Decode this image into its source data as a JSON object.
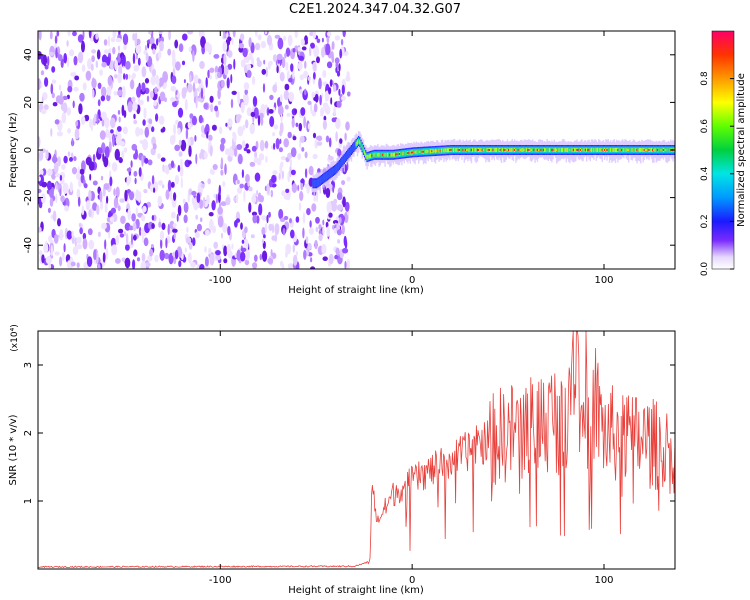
{
  "title": "C2E1.2024.347.04.32.G07",
  "chart_data": [
    {
      "type": "heatmap",
      "title": "C2E1.2024.347.04.32.G07",
      "xlabel": "Height of straight line (km)",
      "ylabel": "Frequency (Hz)",
      "xlim": [
        -195,
        137
      ],
      "ylim": [
        -50,
        50
      ],
      "xticks": [
        -100,
        0,
        100
      ],
      "yticks": [
        -40,
        -20,
        0,
        20,
        40
      ],
      "colorbar": {
        "label": "Normalized spectral amplitude",
        "range": [
          0,
          1
        ],
        "ticks": [
          0.0,
          0.2,
          0.4,
          0.6,
          0.8
        ]
      },
      "noise_region_x": [
        -195,
        -35
      ],
      "signal_track": {
        "x": [
          -50,
          -40,
          -32,
          -28,
          -24,
          -20,
          -10,
          0,
          20,
          40,
          60,
          80,
          100,
          120,
          137
        ],
        "y": [
          -14,
          -8,
          0,
          4,
          -3,
          -2,
          -2,
          -1,
          0,
          0,
          0,
          0,
          0,
          0,
          0
        ]
      }
    },
    {
      "type": "line",
      "xlabel": "Height of straight line (km)",
      "ylabel": "SNR (10 * v/v)",
      "yexponent": "(x10⁴)",
      "xlim": [
        -195,
        137
      ],
      "ylim": [
        0,
        3.5
      ],
      "xticks": [
        -100,
        0,
        100
      ],
      "yticks": [
        1,
        2,
        3
      ],
      "color": "#e8413c",
      "series_envelope": {
        "x": [
          -195,
          -30,
          -22,
          -21,
          -18,
          -10,
          0,
          20,
          40,
          60,
          80,
          85,
          100,
          120,
          137
        ],
        "y": [
          0.02,
          0.03,
          0.1,
          1.2,
          0.7,
          1.1,
          1.3,
          1.6,
          1.9,
          2.1,
          2.3,
          3.5,
          2.0,
          1.9,
          1.7
        ]
      }
    }
  ]
}
